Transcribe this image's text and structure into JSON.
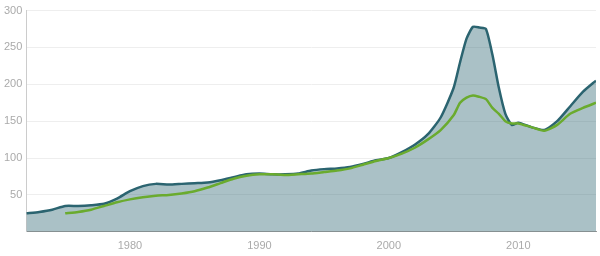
{
  "chart_data": {
    "type": "line",
    "x": [
      1972,
      1973,
      1974,
      1975,
      1976,
      1977,
      1978,
      1979,
      1980,
      1981,
      1982,
      1983,
      1984,
      1985,
      1986,
      1987,
      1988,
      1989,
      1990,
      1991,
      1992,
      1993,
      1994,
      1995,
      1996,
      1997,
      1998,
      1999,
      2000,
      2001,
      2002,
      2003,
      2004,
      2005,
      2005.5,
      2006,
      2006.5,
      2007,
      2007.5,
      2008,
      2008.5,
      2009,
      2009.5,
      2010,
      2011,
      2012,
      2013,
      2014,
      2015,
      2016
    ],
    "series": [
      {
        "type": "area",
        "color": "#2b6470",
        "values": [
          25,
          27,
          30,
          35,
          35,
          36,
          38,
          45,
          55,
          62,
          65,
          64,
          65,
          66,
          67,
          70,
          74,
          78,
          79,
          78,
          78,
          79,
          83,
          85,
          86,
          88,
          92,
          97,
          100,
          108,
          118,
          132,
          155,
          195,
          230,
          262,
          278,
          277,
          275,
          240,
          195,
          160,
          145,
          148,
          142,
          138,
          150,
          170,
          190,
          205
        ]
      },
      {
        "type": "line",
        "color": "#6aab2e",
        "values": [
          null,
          null,
          null,
          25,
          27,
          30,
          35,
          40,
          44,
          47,
          49,
          50,
          52,
          55,
          60,
          66,
          72,
          76,
          78,
          78,
          77,
          78,
          79,
          81,
          83,
          86,
          91,
          96,
          100,
          106,
          114,
          125,
          138,
          158,
          175,
          182,
          185,
          183,
          180,
          168,
          160,
          150,
          147,
          147,
          142,
          137,
          145,
          160,
          168,
          175
        ]
      }
    ],
    "xlim": [
      1972,
      2016
    ],
    "xticks": [
      1980,
      1990,
      2000,
      2010
    ],
    "ylim": [
      0,
      300
    ],
    "yticks": [
      50,
      100,
      150,
      200,
      250,
      300
    ],
    "grid": true
  }
}
